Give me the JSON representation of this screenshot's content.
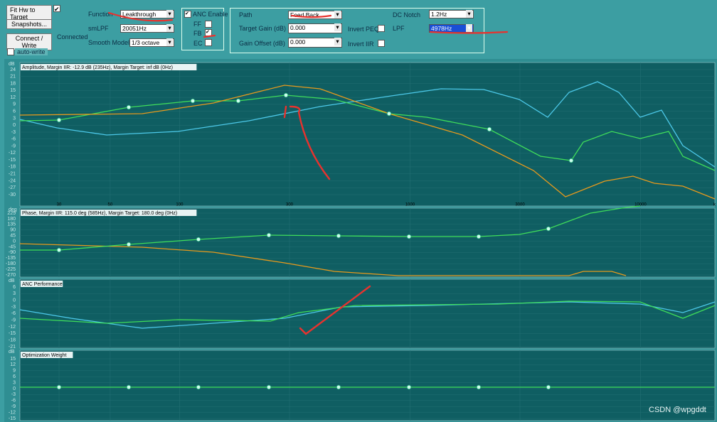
{
  "toolbar": {
    "fit_button": "Fit Hw to Target",
    "snapshots_button": "Snapshots...",
    "connect_button": "Connect / Write",
    "status": "Connected",
    "auto_write": "auto-write",
    "function_label": "Function",
    "function_value": "Leakthrough",
    "smlpf_label": "smLPF",
    "smlpf_value": "20051Hz",
    "smooth_label": "Smooth Model",
    "smooth_value": "1/3 octave",
    "anc_enable": "ANC Enable",
    "ff": "FF",
    "fb": "FB",
    "ec": "EC",
    "path_label": "Path",
    "path_value": "Feed Back",
    "target_gain_label": "Target Gain (dB)",
    "target_gain_value": "0.000",
    "gain_offset_label": "Gain Offset (dB)",
    "gain_offset_value": "0.000",
    "invert_peq": "Invert PEQ",
    "invert_iir": "Invert IIR",
    "dc_notch_label": "DC Notch",
    "dc_notch_value": "1.2Hz",
    "lpf_label": "LPF",
    "lpf_value": "4978Hz"
  },
  "plots": [
    {
      "title": "Amplitude, Margin IIR: -12.9 dB (235Hz), Margin Target: inf dB (0Hz)",
      "unit": "dB",
      "yticks": [
        24,
        21,
        18,
        15,
        12,
        9,
        6,
        3,
        0,
        -3,
        -6,
        -9,
        -12,
        -15,
        -18,
        -21,
        -24,
        -27,
        -30
      ],
      "xticks": [
        30,
        50,
        100,
        300,
        1000,
        3000,
        10000
      ],
      "x_end_label": "k"
    },
    {
      "title": "Phase, Margin IIR: 115.0 deg (585Hz), Margin Target: 180.0 deg (0Hz)",
      "unit": "deg",
      "yticks": [
        225,
        180,
        135,
        90,
        45,
        0,
        -45,
        -90,
        -135,
        -180,
        -225,
        -270
      ]
    },
    {
      "title": "ANC Performance",
      "unit": "dB",
      "yticks": [
        6,
        3,
        0,
        -3,
        -6,
        -9,
        -12,
        -15,
        -18,
        -21
      ]
    },
    {
      "title": "Optimization Weight",
      "unit": "dB",
      "yticks": [
        15,
        12,
        9,
        6,
        3,
        0,
        -3,
        -6,
        -9,
        -12,
        -15
      ]
    }
  ],
  "watermark": "CSDN @wpgddt"
}
